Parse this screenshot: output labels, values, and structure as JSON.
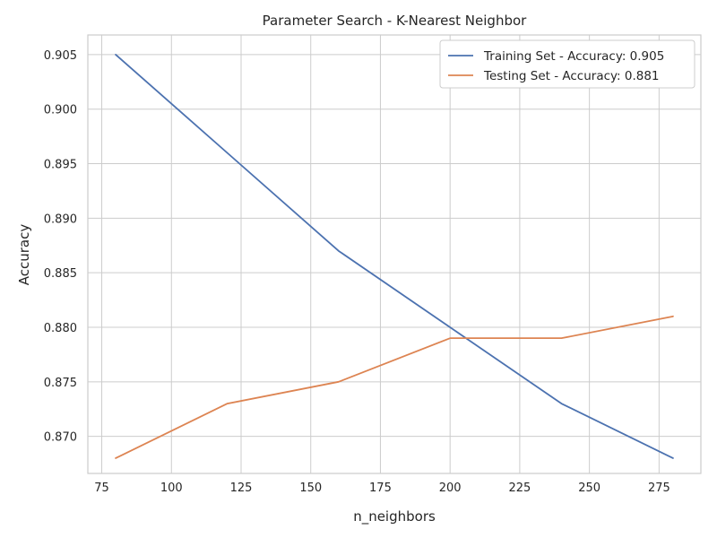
{
  "chart_data": {
    "type": "line",
    "title": "Parameter Search - K-Nearest Neighbor",
    "xlabel": "n_neighbors",
    "ylabel": "Accuracy",
    "xlim": [
      70,
      290
    ],
    "ylim": [
      0.8666,
      0.9068
    ],
    "xticks": [
      75,
      100,
      125,
      150,
      175,
      200,
      225,
      250,
      275
    ],
    "yticks": [
      0.87,
      0.875,
      0.88,
      0.885,
      0.89,
      0.895,
      0.9,
      0.905
    ],
    "grid": true,
    "legend_position": "top-right",
    "series": [
      {
        "name": "Training Set - Accuracy: 0.905",
        "color": "#4c72b0",
        "x": [
          80,
          120,
          160,
          200,
          240,
          280
        ],
        "y": [
          0.905,
          0.896,
          0.887,
          0.88,
          0.873,
          0.868
        ]
      },
      {
        "name": "Testing Set - Accuracy: 0.881",
        "color": "#dd8452",
        "x": [
          80,
          120,
          160,
          200,
          240,
          280
        ],
        "y": [
          0.868,
          0.873,
          0.875,
          0.879,
          0.879,
          0.881
        ]
      }
    ]
  }
}
